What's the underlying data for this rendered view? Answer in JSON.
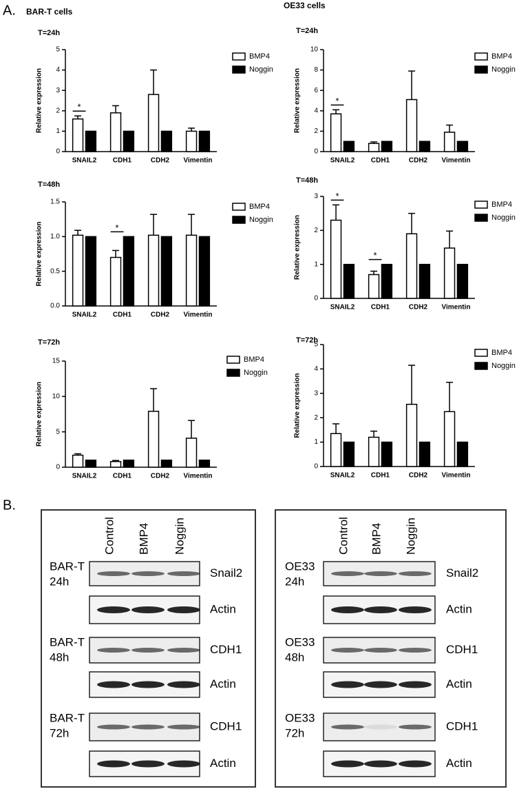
{
  "panel_a": {
    "label": "A.",
    "groups": [
      "BAR-T cells",
      "OE33 cells"
    ]
  },
  "chart_data": [
    {
      "type": "bar",
      "title": "T=24h",
      "y_label": "Relative expression",
      "categories": [
        "SNAIL2",
        "CDH1",
        "CDH2",
        "Vimentin"
      ],
      "series": [
        {
          "name": "BMP4",
          "color": "#ffffff",
          "values": [
            1.6,
            1.9,
            2.8,
            1.0
          ],
          "errors": [
            0.15,
            0.35,
            1.2,
            0.15
          ]
        },
        {
          "name": "Noggin",
          "color": "#000000",
          "values": [
            1,
            1,
            1,
            1
          ]
        }
      ],
      "significance": [
        "*",
        null,
        null,
        null
      ],
      "ylim": [
        0,
        5
      ],
      "yticks": [
        0,
        1,
        2,
        3,
        4,
        5
      ]
    },
    {
      "type": "bar",
      "title": "T=48h",
      "y_label": "Relative expression",
      "categories": [
        "SNAIL2",
        "CDH1",
        "CDH2",
        "Vimentin"
      ],
      "series": [
        {
          "name": "BMP4",
          "color": "#ffffff",
          "values": [
            1.02,
            0.7,
            1.02,
            1.02
          ],
          "errors": [
            0.07,
            0.1,
            0.3,
            0.3
          ]
        },
        {
          "name": "Noggin",
          "color": "#000000",
          "values": [
            1,
            1,
            1,
            1
          ]
        }
      ],
      "significance": [
        null,
        "*",
        null,
        null
      ],
      "ylim": [
        0,
        1.5
      ],
      "yticks": [
        {
          "value": 0,
          "label": "0.0"
        },
        0.5,
        {
          "value": 1,
          "label": "1.0"
        },
        1.5
      ]
    },
    {
      "type": "bar",
      "title": "T=72h",
      "y_label": "Relative expression",
      "categories": [
        "SNAIL2",
        "CDH1",
        "CDH2",
        "Vimentin"
      ],
      "series": [
        {
          "name": "BMP4",
          "color": "#ffffff",
          "values": [
            1.7,
            0.8,
            7.9,
            4.1
          ],
          "errors": [
            0.2,
            0.15,
            3.2,
            2.5
          ]
        },
        {
          "name": "Noggin",
          "color": "#000000",
          "values": [
            1,
            1,
            1,
            1
          ]
        }
      ],
      "significance": [
        null,
        null,
        null,
        null
      ],
      "ylim": [
        0,
        15
      ],
      "yticks": [
        0,
        5,
        10,
        15
      ]
    },
    {
      "type": "bar",
      "title": "T=24h",
      "y_label": "Relative expression",
      "categories": [
        "SNAIL2",
        "CDH1",
        "CDH2",
        "Vimentin"
      ],
      "series": [
        {
          "name": "BMP4",
          "color": "#ffffff",
          "values": [
            3.7,
            0.8,
            5.1,
            1.9
          ],
          "errors": [
            0.4,
            0.15,
            2.8,
            0.7
          ]
        },
        {
          "name": "Noggin",
          "color": "#000000",
          "values": [
            1,
            1,
            1,
            1
          ]
        }
      ],
      "significance": [
        "*",
        null,
        null,
        null
      ],
      "ylim": [
        0,
        10
      ],
      "yticks": [
        0,
        2,
        4,
        6,
        8,
        10
      ]
    },
    {
      "type": "bar",
      "title": "T=48h",
      "y_label": "Relative expression",
      "categories": [
        "SNAIL2",
        "CDH1",
        "CDH2",
        "Vimentin"
      ],
      "series": [
        {
          "name": "BMP4",
          "color": "#ffffff",
          "values": [
            2.3,
            0.7,
            1.9,
            1.48
          ],
          "errors": [
            0.45,
            0.1,
            0.6,
            0.5
          ]
        },
        {
          "name": "Noggin",
          "color": "#000000",
          "values": [
            1,
            1,
            1,
            1
          ]
        }
      ],
      "significance": [
        "*",
        "*",
        null,
        null
      ],
      "ylim": [
        0,
        3
      ],
      "yticks": [
        0,
        1,
        2,
        3
      ]
    },
    {
      "type": "bar",
      "title": "T=72h",
      "y_label": "Relative expression",
      "categories": [
        "SNAIL2",
        "CDH1",
        "CDH2",
        "Vimentin"
      ],
      "series": [
        {
          "name": "BMP4",
          "color": "#ffffff",
          "values": [
            1.35,
            1.2,
            2.55,
            2.25
          ],
          "errors": [
            0.4,
            0.25,
            1.6,
            1.2
          ]
        },
        {
          "name": "Noggin",
          "color": "#000000",
          "values": [
            1,
            1,
            1,
            1
          ]
        }
      ],
      "significance": [
        null,
        null,
        null,
        null
      ],
      "ylim": [
        0,
        5
      ],
      "yticks": [
        0,
        1,
        2,
        3,
        4,
        5
      ]
    }
  ],
  "panel_b": {
    "label": "B.",
    "blots": [
      {
        "lanes": [
          "Control",
          "BMP4",
          "Noggin"
        ],
        "rows": [
          {
            "sample": [
              "BAR-T",
              "24h"
            ],
            "target": "Snail2"
          },
          {
            "target": "Actin"
          },
          {
            "sample": [
              "BAR-T",
              "48h"
            ],
            "target": "CDH1"
          },
          {
            "target": "Actin"
          },
          {
            "sample": [
              "BAR-T",
              "72h"
            ],
            "target": "CDH1"
          },
          {
            "target": "Actin"
          }
        ]
      },
      {
        "lanes": [
          "Control",
          "BMP4",
          "Noggin"
        ],
        "rows": [
          {
            "sample": [
              "OE33",
              "24h"
            ],
            "target": "Snail2"
          },
          {
            "target": "Actin"
          },
          {
            "sample": [
              "OE33",
              "48h"
            ],
            "target": "CDH1"
          },
          {
            "target": "Actin"
          },
          {
            "sample": [
              "OE33",
              "72h"
            ],
            "target": "CDH1"
          },
          {
            "target": "Actin"
          }
        ]
      }
    ]
  }
}
